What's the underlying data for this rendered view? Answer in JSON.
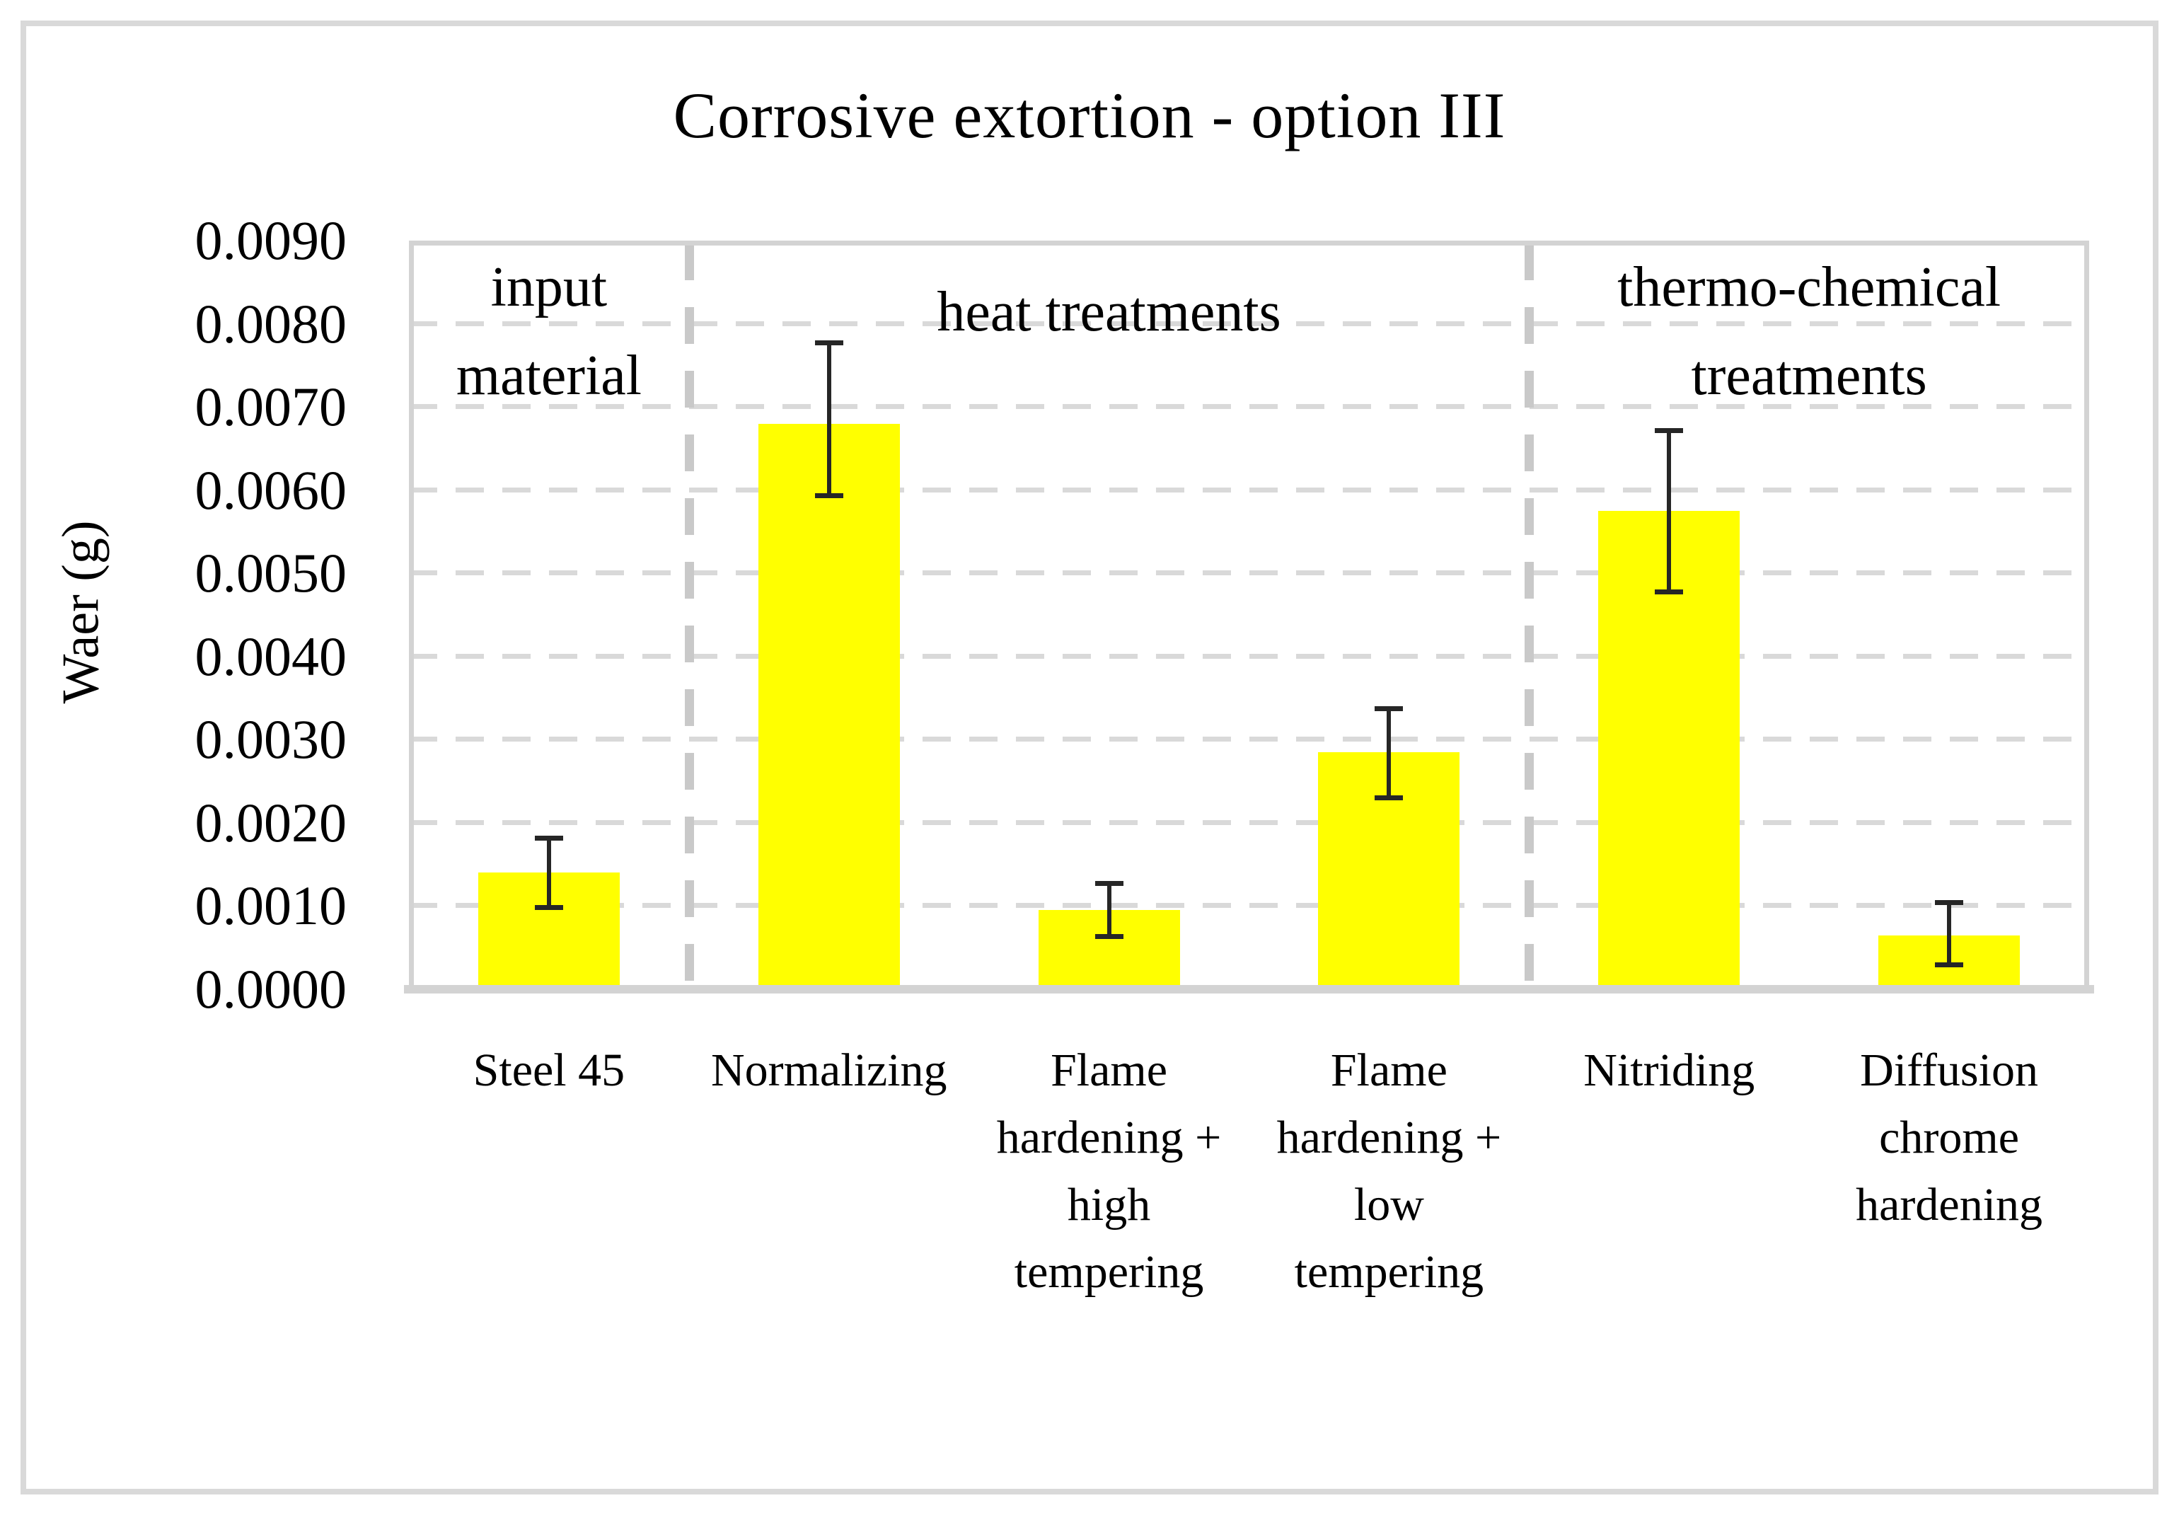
{
  "chart_data": {
    "type": "bar",
    "title": "Corrosive extortion - option III",
    "ylabel": "Waer (g)",
    "xlabel": "",
    "ylim": [
      0,
      0.009
    ],
    "ytick_step": 0.001,
    "ytick_labels": [
      "0.0000",
      "0.0010",
      "0.0020",
      "0.0030",
      "0.0040",
      "0.0050",
      "0.0060",
      "0.0070",
      "0.0080",
      "0.0090"
    ],
    "grid": true,
    "legend": false,
    "categories": [
      "Steel 45",
      "Normalizing",
      "Flame hardening + high tempering",
      "Flame hardening + low tempering",
      "Nitriding",
      "Diffusion chrome hardening"
    ],
    "category_label_lines": [
      [
        "Steel 45"
      ],
      [
        "Normalizing"
      ],
      [
        "Flame",
        "hardening +",
        "high",
        "tempering"
      ],
      [
        "Flame",
        "hardening +",
        "low",
        "tempering"
      ],
      [
        "Nitriding"
      ],
      [
        "Diffusion",
        "chrome",
        "hardening"
      ]
    ],
    "series": [
      {
        "name": "Waer (g)",
        "values": [
          0.0014,
          0.0068,
          0.00095,
          0.00285,
          0.00575,
          0.00065
        ],
        "error_high": [
          0.00185,
          0.0078,
          0.0013,
          0.0034,
          0.00675,
          0.00107
        ],
        "error_low": [
          0.00095,
          0.0059,
          0.0006,
          0.00227,
          0.00475,
          0.00026
        ]
      }
    ],
    "groups": [
      {
        "label": "input material",
        "lines": [
          "input",
          "material"
        ],
        "span": [
          0,
          1
        ]
      },
      {
        "label": "heat treatments",
        "lines": [
          "heat treatments"
        ],
        "span": [
          1,
          4
        ]
      },
      {
        "label": "thermo-chemical treatments",
        "lines": [
          "thermo-chemical",
          "treatments"
        ],
        "span": [
          4,
          6
        ]
      }
    ],
    "colors": {
      "bar": "#FFFF00",
      "error_bar": "#262626",
      "gridline": "#D9D9D9",
      "divider": "#C9C9C9",
      "plot_border": "#D3D3D3",
      "outer_border": "#D9D9D9",
      "text": "#000000",
      "background": "#FFFFFF"
    }
  }
}
